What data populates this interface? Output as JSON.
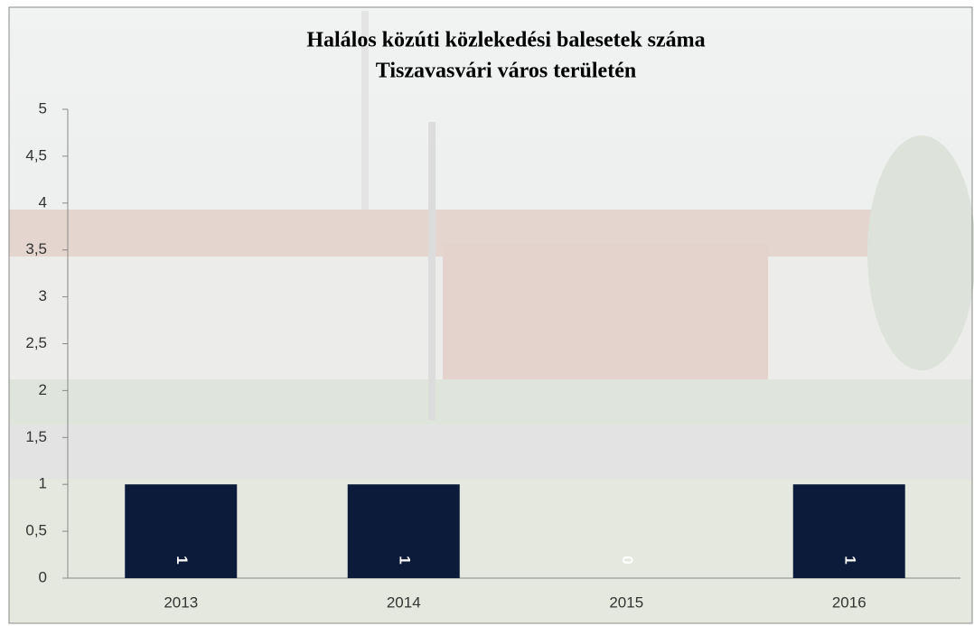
{
  "chart_data": {
    "type": "bar",
    "title": [
      "Halálos közúti közlekedési balesetek száma",
      "Tiszavasvári város területén"
    ],
    "categories": [
      "2013",
      "2014",
      "2015",
      "2016"
    ],
    "values": [
      1,
      1,
      0,
      1
    ],
    "color": "#0d1b3a",
    "ylim": [
      0,
      5
    ],
    "yticks": [
      0,
      {
        "value": 0.5,
        "label": "0,5"
      },
      1,
      {
        "value": 1.5,
        "label": "1,5"
      },
      2,
      {
        "value": 2.5,
        "label": "2,5"
      },
      3,
      {
        "value": 3.5,
        "label": "3,5"
      },
      4,
      {
        "value": 4.5,
        "label": "4,5"
      },
      5
    ],
    "grid": false
  }
}
